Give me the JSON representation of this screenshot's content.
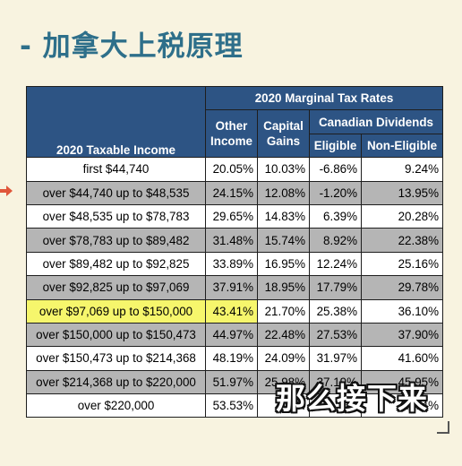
{
  "page": {
    "title": "- 加拿大上税原理"
  },
  "colors": {
    "header": "#2d5484",
    "title": "#2e6f8a",
    "highlight": "#f6f66c",
    "arrow": "#e0563b"
  },
  "table": {
    "header": {
      "marginal": "2020 Marginal Tax Rates",
      "income": "2020 Taxable Income",
      "other_line1": "Other",
      "other_line2": "Income",
      "capital_line1": "Capital",
      "capital_line2": "Gains",
      "dividends": "Canadian Dividends",
      "eligible": "Eligible",
      "non_eligible": "Non-Eligible"
    },
    "rows": [
      {
        "income": "first $44,740",
        "other": "20.05%",
        "capital": "10.03%",
        "eligible": "-6.86%",
        "non_eligible": "9.24%"
      },
      {
        "income": "over $44,740 up to $48,535",
        "other": "24.15%",
        "capital": "12.08%",
        "eligible": "-1.20%",
        "non_eligible": "13.95%"
      },
      {
        "income": "over $48,535 up to $78,783",
        "other": "29.65%",
        "capital": "14.83%",
        "eligible": "6.39%",
        "non_eligible": "20.28%"
      },
      {
        "income": "over $78,783 up to $89,482",
        "other": "31.48%",
        "capital": "15.74%",
        "eligible": "8.92%",
        "non_eligible": "22.38%"
      },
      {
        "income": "over $89,482 up to $92,825",
        "other": "33.89%",
        "capital": "16.95%",
        "eligible": "12.24%",
        "non_eligible": "25.16%"
      },
      {
        "income": "over $92,825 up to $97,069",
        "other": "37.91%",
        "capital": "18.95%",
        "eligible": "17.79%",
        "non_eligible": "29.78%"
      },
      {
        "income": "over $97,069 up to $150,000",
        "other": "43.41%",
        "capital": "21.70%",
        "eligible": "25.38%",
        "non_eligible": "36.10%"
      },
      {
        "income": "over $150,000 up to $150,473",
        "other": "44.97%",
        "capital": "22.48%",
        "eligible": "27.53%",
        "non_eligible": "37.90%"
      },
      {
        "income": "over $150,473 up to $214,368",
        "other": "48.19%",
        "capital": "24.09%",
        "eligible": "31.97%",
        "non_eligible": "41.60%"
      },
      {
        "income": "over $214,368 up to $220,000",
        "other": "51.97%",
        "capital": "25.98%",
        "eligible": "37.19%",
        "non_eligible": "45.95%"
      },
      {
        "income": "over $220,000",
        "other": "53.53%",
        "capital": "26.",
        "eligible": "",
        "non_eligible": "47.74%"
      }
    ]
  },
  "subtitle": "那么接下来"
}
